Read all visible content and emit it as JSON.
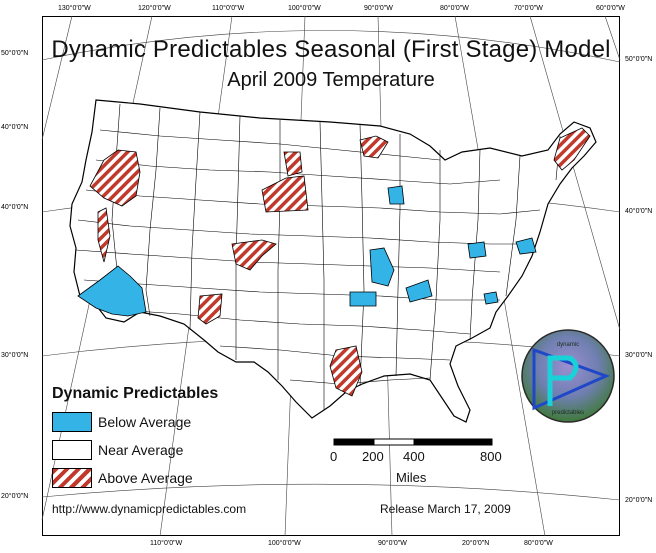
{
  "title": "Dynamic Predictables Seasonal (First Stage) Model",
  "subtitle": "April 2009 Temperature",
  "coordinates": {
    "top": [
      "130°0'0\"W",
      "120°0'0\"W",
      "110°0'0\"W",
      "100°0'0\"W",
      "90°0'0\"W",
      "80°0'0\"W",
      "70°0'0\"W",
      "60°0'0\"W"
    ],
    "bottom": [
      "110°0'0\"W",
      "100°0'0\"W",
      "90°0'0\"W",
      "20°0'0\"N",
      "80°0'0\"W"
    ],
    "left": [
      "50°0'0\"N",
      "40°0'0\"N",
      "40°0'0\"N",
      "30°0'0\"N",
      "20°0'0\"N"
    ],
    "right": [
      "50°0'0\"N",
      "40°0'0\"N",
      "30°0'0\"N",
      "20°0'0\"N"
    ]
  },
  "legend": {
    "title": "Dynamic Predictables",
    "items": [
      {
        "label": "Below Average",
        "color": "#33b3e6"
      },
      {
        "label": "Near Average",
        "color": "#ffffff"
      },
      {
        "label": "Above Average",
        "color": "#c0392b"
      }
    ]
  },
  "scale_bar": {
    "ticks": [
      "0",
      "200",
      "400",
      "800"
    ],
    "unit": "Miles"
  },
  "logo": {
    "top_text": "dynamic",
    "bottom_text": "predictables"
  },
  "footer": {
    "url": "http://www.dynamicpredictables.com",
    "release": "Release March 17, 2009"
  },
  "colors": {
    "below": "#33b3e6",
    "above": "#c0392b",
    "border": "#000000"
  }
}
